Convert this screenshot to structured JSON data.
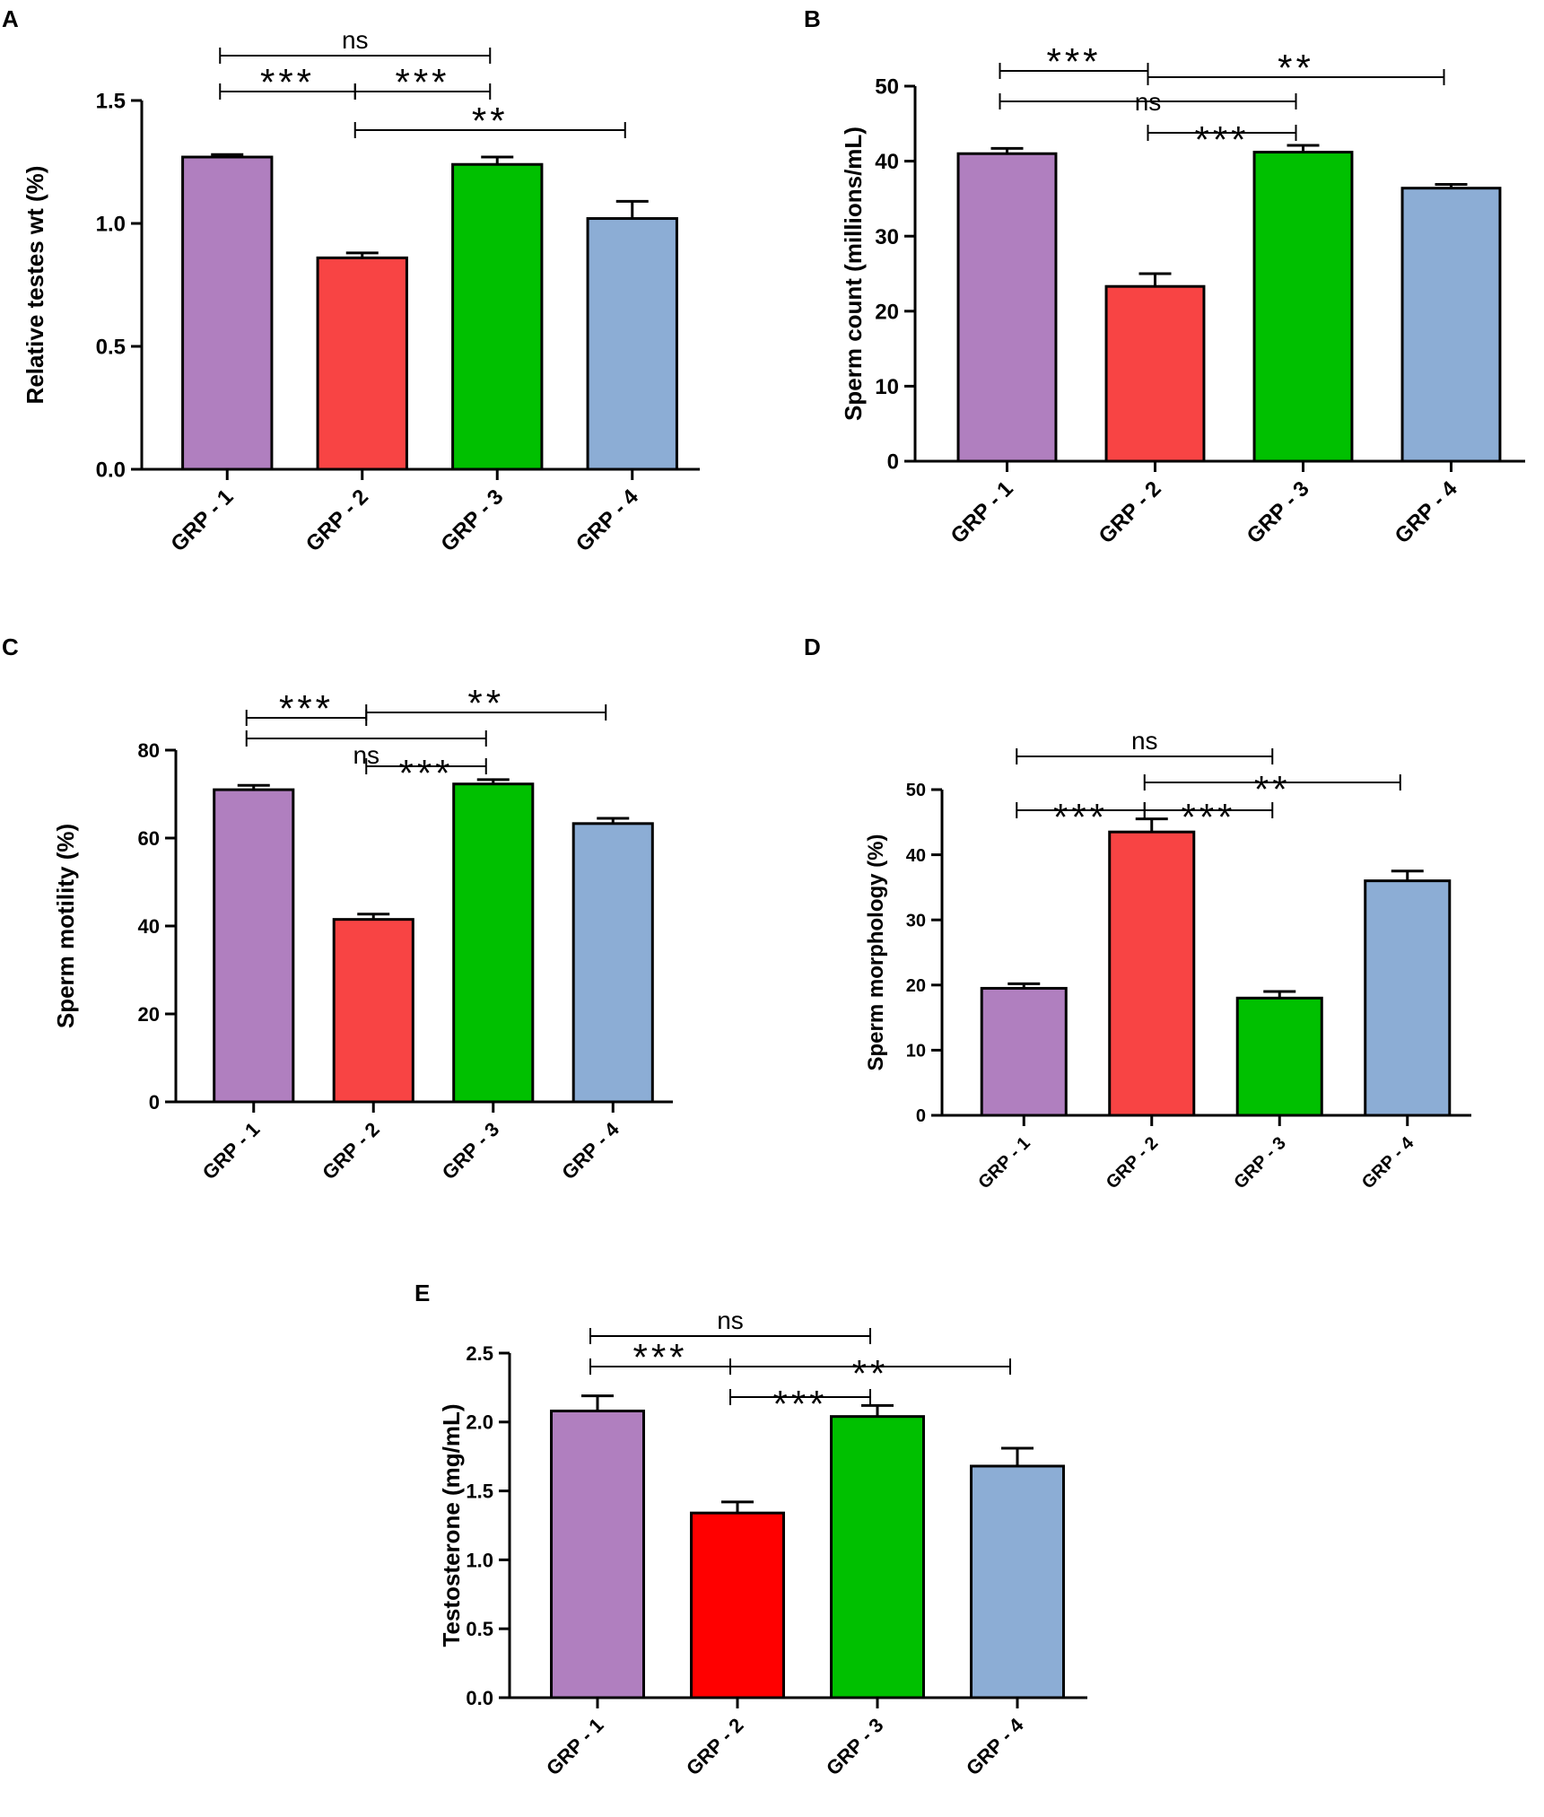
{
  "chart_data": [
    {
      "panel": "A",
      "type": "bar",
      "categories": [
        "GRP - 1",
        "GRP - 2",
        "GRP - 3",
        "GRP - 4"
      ],
      "values": [
        1.27,
        0.86,
        1.24,
        1.02
      ],
      "errors": [
        0.01,
        0.02,
        0.03,
        0.07
      ],
      "colors": [
        "#b07fbf",
        "#f84444",
        "#00c000",
        "#8cadd5"
      ],
      "ylabel": "Relative testes wt (%)",
      "xlabel": "",
      "ylim": [
        0,
        1.5
      ],
      "yticks": [
        "0.0",
        "0.5",
        "1.0",
        "1.5"
      ],
      "grid": false,
      "significance": [
        {
          "from": 0,
          "to": 2,
          "label": "ns"
        },
        {
          "from": 0,
          "to": 1,
          "label": "***"
        },
        {
          "from": 1,
          "to": 2,
          "label": "***"
        },
        {
          "from": 1,
          "to": 3,
          "label": "**"
        }
      ]
    },
    {
      "panel": "B",
      "type": "bar",
      "categories": [
        "GRP - 1",
        "GRP - 2",
        "GRP - 3",
        "GRP - 4"
      ],
      "values": [
        41,
        23.3,
        41.2,
        36.4
      ],
      "errors": [
        0.7,
        1.7,
        0.9,
        0.5
      ],
      "colors": [
        "#b07fbf",
        "#f84444",
        "#00c000",
        "#8cadd5"
      ],
      "ylabel": "Sperm count (millions/mL)",
      "xlabel": "",
      "ylim": [
        0,
        50
      ],
      "yticks": [
        "0",
        "10",
        "20",
        "30",
        "40",
        "50"
      ],
      "grid": false,
      "significance": [
        {
          "from": 0,
          "to": 1,
          "label": "***"
        },
        {
          "from": 1,
          "to": 3,
          "label": "**"
        },
        {
          "from": 0,
          "to": 2,
          "label": "ns"
        },
        {
          "from": 1,
          "to": 2,
          "label": "***"
        }
      ]
    },
    {
      "panel": "C",
      "type": "bar",
      "categories": [
        "GRP - 1",
        "GRP - 2",
        "GRP - 3",
        "GRP - 4"
      ],
      "values": [
        71,
        41.5,
        72.3,
        63.3
      ],
      "errors": [
        1,
        1.2,
        1,
        1.2
      ],
      "colors": [
        "#b07fbf",
        "#f84444",
        "#00c000",
        "#8cadd5"
      ],
      "ylabel": "Sperm motility (%)",
      "xlabel": "",
      "ylim": [
        0,
        80
      ],
      "yticks": [
        "0",
        "20",
        "40",
        "60",
        "80"
      ],
      "grid": false,
      "significance": [
        {
          "from": 0,
          "to": 1,
          "label": "***"
        },
        {
          "from": 1,
          "to": 3,
          "label": "**"
        },
        {
          "from": 0,
          "to": 2,
          "label": "ns"
        },
        {
          "from": 1,
          "to": 2,
          "label": "***"
        }
      ]
    },
    {
      "panel": "D",
      "type": "bar",
      "categories": [
        "GRP - 1",
        "GRP - 2",
        "GRP - 3",
        "GRP - 4"
      ],
      "values": [
        19.5,
        43.5,
        18,
        36
      ],
      "errors": [
        0.7,
        2,
        1,
        1.5
      ],
      "colors": [
        "#b07fbf",
        "#f84444",
        "#00c000",
        "#8cadd5"
      ],
      "ylabel": "Sperm morphology (%)",
      "xlabel": "",
      "ylim": [
        0,
        50
      ],
      "yticks": [
        "0",
        "10",
        "20",
        "30",
        "40",
        "50"
      ],
      "grid": false,
      "significance": [
        {
          "from": 0,
          "to": 2,
          "label": "ns"
        },
        {
          "from": 1,
          "to": 3,
          "label": "**"
        },
        {
          "from": 0,
          "to": 1,
          "label": "***"
        },
        {
          "from": 1,
          "to": 2,
          "label": "***"
        }
      ]
    },
    {
      "panel": "E",
      "type": "bar",
      "categories": [
        "GRP - 1",
        "GRP - 2",
        "GRP - 3",
        "GRP - 4"
      ],
      "values": [
        2.08,
        1.34,
        2.04,
        1.68
      ],
      "errors": [
        0.11,
        0.08,
        0.08,
        0.13
      ],
      "colors": [
        "#b07fbf",
        "#ff0000",
        "#00c000",
        "#8cadd5"
      ],
      "ylabel": "Testosterone (mg/mL)",
      "xlabel": "",
      "ylim": [
        0,
        2.5
      ],
      "yticks": [
        "0.0",
        "0.5",
        "1.0",
        "1.5",
        "2.0",
        "2.5"
      ],
      "grid": false,
      "significance": [
        {
          "from": 0,
          "to": 2,
          "label": "ns"
        },
        {
          "from": 0,
          "to": 1,
          "label": "***"
        },
        {
          "from": 1,
          "to": 3,
          "label": "**"
        },
        {
          "from": 1,
          "to": 2,
          "label": "***"
        }
      ]
    }
  ]
}
